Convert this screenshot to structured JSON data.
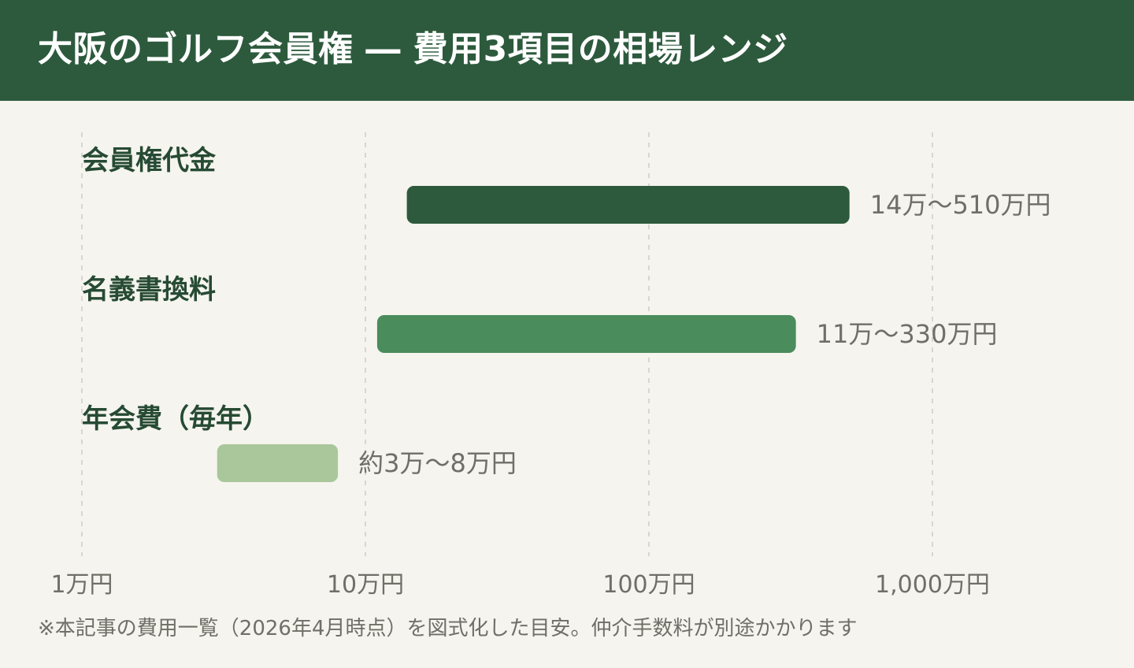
{
  "header": {
    "title": "大阪のゴルフ会員権 ― 費用3項目の相場レンジ"
  },
  "chart_data": {
    "type": "bar",
    "subtype": "horizontal-range",
    "title": "大阪のゴルフ会員権 ― 費用3項目の相場レンジ",
    "x_scale": "log",
    "xlim": [
      1,
      1000
    ],
    "x_unit": "万円",
    "x_ticks": [
      {
        "value": 1,
        "label": "1万円"
      },
      {
        "value": 10,
        "label": "10万円"
      },
      {
        "value": 100,
        "label": "100万円"
      },
      {
        "value": 1000,
        "label": "1,000万円"
      }
    ],
    "grid": true,
    "ranges": [
      {
        "category": "会員権代金",
        "low": 14,
        "high": 510,
        "label": "14万〜510万円",
        "color": "#2d5a3d"
      },
      {
        "category": "名義書換料",
        "low": 11,
        "high": 330,
        "label": "11万〜330万円",
        "color": "#4a8c5c"
      },
      {
        "category": "年会費（毎年）",
        "low": 3,
        "high": 8,
        "label": "約3万〜8万円",
        "color": "#a9c79a"
      }
    ]
  },
  "footnote": "※本記事の費用一覧（2026年4月時点）を図式化した目安。仲介手数料が別途かかります"
}
